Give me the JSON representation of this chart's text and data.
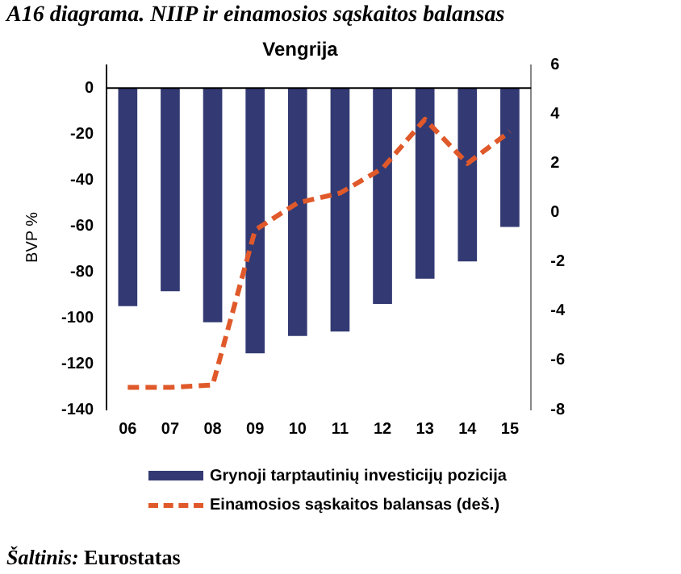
{
  "chart_data": {
    "type": "bar",
    "title": "A16 diagrama. NIIP ir einamosios sąskaitos balansas",
    "subtitle": "Vengrija",
    "ylabel": "BVP %",
    "categories": [
      "06",
      "07",
      "08",
      "09",
      "10",
      "11",
      "12",
      "13",
      "14",
      "15"
    ],
    "series": [
      {
        "name": "Grynoji tarptautinių investicijų pozicija",
        "color": "#333a73",
        "values": [
          -95,
          -88.5,
          -102,
          -115.5,
          -108,
          -106,
          -94,
          -83,
          -75.5,
          -60.5
        ]
      },
      {
        "name": "Einamosios sąskaitos balansas (deš.)",
        "type": "line",
        "axis": "y2",
        "color": "#e0592a",
        "line_style": "dashed",
        "marker": "none",
        "values": [
          -7.1,
          -7.1,
          -7.0,
          -0.7,
          0.4,
          0.8,
          1.8,
          3.8,
          2.0,
          3.3
        ]
      }
    ],
    "ylim": [
      -140,
      10
    ],
    "yticks": [
      0,
      -20,
      -40,
      -60,
      -80,
      -100,
      -120,
      -140
    ],
    "y2lim": [
      -8,
      6
    ],
    "y2ticks": [
      6,
      4,
      2,
      0,
      -2,
      -4,
      -6,
      -8
    ],
    "grid": false,
    "legend": "bottom",
    "ref_lines": [
      {
        "axis": "y",
        "value": 0,
        "color": "#000000"
      }
    ],
    "annotations": [
      "Šaltinis: Eurostatas"
    ]
  }
}
